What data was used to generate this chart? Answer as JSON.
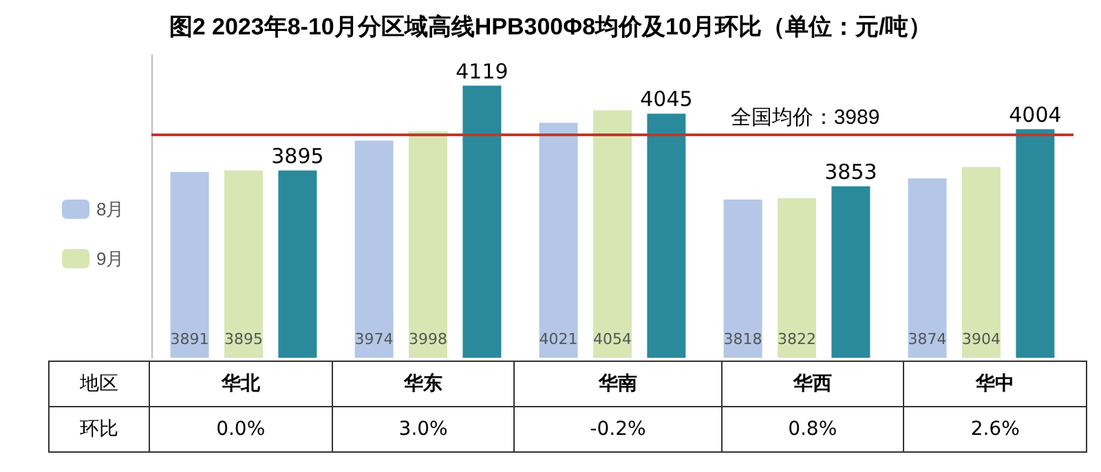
{
  "chart_data": {
    "type": "bar",
    "title": "图2 2023年8-10月分区域高线HPB300Φ8均价及10月环比（单位：元/吨）",
    "categories": [
      "华北",
      "华东",
      "华南",
      "华西",
      "华中"
    ],
    "series": [
      {
        "name": "8月",
        "color": "#b4c7e7",
        "values": [
          3891,
          3974,
          4021,
          3818,
          3874
        ]
      },
      {
        "name": "9月",
        "color": "#d8e6b4",
        "values": [
          3895,
          3998,
          4054,
          3822,
          3904
        ]
      },
      {
        "color": "#2a8a9c",
        "values": [
          3895,
          4119,
          4045,
          3853,
          4004
        ]
      }
    ],
    "ylim": [
      3400,
      4200
    ],
    "tick_labels": false,
    "data_labels": true,
    "legend": "left",
    "ref_lines": [
      {
        "axis": "y",
        "value": 3989,
        "label": "全国均价：3989",
        "color": "#c0392b"
      }
    ],
    "annotations": [
      "地区",
      "环比",
      "0.0%",
      "3.0%",
      "-0.2%",
      "0.8%",
      "2.6%"
    ]
  }
}
